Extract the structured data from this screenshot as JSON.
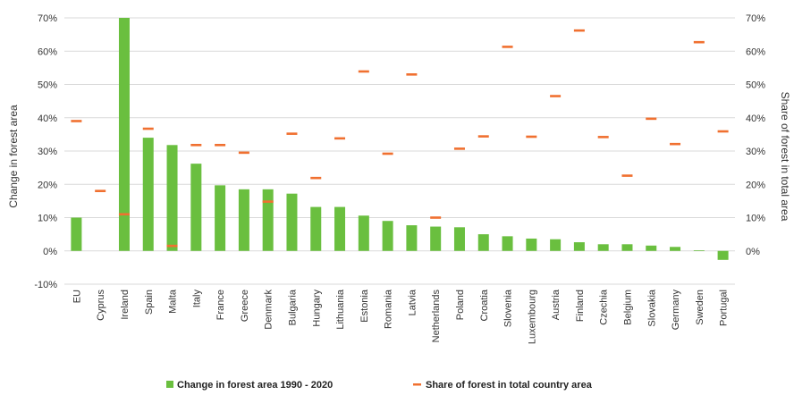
{
  "chart_data": {
    "type": "bar",
    "y_left_label": "Change in forest area",
    "y_right_label": "Share of forest in total area",
    "ylim": [
      -10,
      70
    ],
    "y_ticks": [
      "-10%",
      "0%",
      "10%",
      "20%",
      "30%",
      "40%",
      "50%",
      "60%",
      "70%"
    ],
    "y_right_ticks": [
      "0%",
      "10%",
      "20%",
      "30%",
      "40%",
      "50%",
      "60%",
      "70%"
    ],
    "categories": [
      "EU",
      "Cyprus",
      "Ireland",
      "Spain",
      "Malta",
      "Italy",
      "France",
      "Greece",
      "Denmark",
      "Bulgaria",
      "Hungary",
      "Lithuania",
      "Estonia",
      "Romania",
      "Latvia",
      "Netherlands",
      "Poland",
      "Croatia",
      "Slovenia",
      "Luxembourg",
      "Austria",
      "Finland",
      "Czechia",
      "Belgium",
      "Slovakia",
      "Germany",
      "Sweden",
      "Portugal"
    ],
    "series": [
      {
        "name": "Change in forest area 1990 - 2020",
        "kind": "bar",
        "color": "#6abf3f",
        "values": [
          10.0,
          0,
          70.0,
          34.0,
          31.8,
          26.2,
          19.7,
          18.5,
          18.5,
          17.2,
          13.2,
          13.2,
          10.6,
          9.0,
          7.7,
          7.3,
          7.1,
          5.0,
          4.4,
          3.7,
          3.5,
          2.6,
          2.0,
          2.0,
          1.6,
          1.2,
          0.2,
          -2.7
        ]
      },
      {
        "name": "Share of forest in total country area",
        "kind": "marker",
        "color": "#f07030",
        "values": [
          39,
          18,
          11,
          36.7,
          1.5,
          31.8,
          31.8,
          29.5,
          14.8,
          35.2,
          21.9,
          33.8,
          53.9,
          29.2,
          53.0,
          10.0,
          30.7,
          34.4,
          61.3,
          34.3,
          46.5,
          66.2,
          34.2,
          22.6,
          39.7,
          32.1,
          62.7,
          35.9
        ]
      }
    ],
    "legend": {
      "position": "bottom",
      "items": [
        {
          "label": "Change in forest area 1990 - 2020",
          "symbol": "bar"
        },
        {
          "label": "Share of forest in total country area",
          "symbol": "dash"
        }
      ]
    },
    "grid": true
  }
}
